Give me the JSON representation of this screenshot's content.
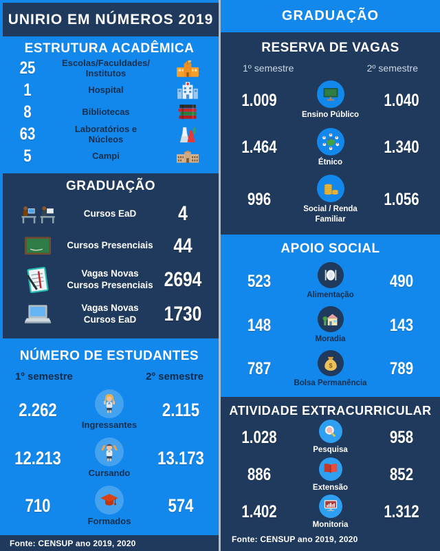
{
  "colors": {
    "navy": "#1f3a5c",
    "blue": "#1287ec",
    "circle_light_blue": "#44a2ee",
    "circle_bright_blue": "#2f9ff2",
    "divider": "#aebfcc",
    "label_dark": "#16304e",
    "semester_muted": "#ccd8e4"
  },
  "icons": {
    "school-icon": "🏫",
    "hospital-icon": "🏥",
    "books-icon": "📚",
    "lab-icon": "⚗",
    "campus-icon": "🏛",
    "ead-students-icon": "💻",
    "chalkboard-icon": "🖥",
    "notepad-icon": "📝",
    "laptop-icon": "💻",
    "girl-student-icon": "👧",
    "boy-student-icon": "🙌",
    "grad-cap-icon": "🎓",
    "public-school-icon": "🏫",
    "ethnic-icon": "🌐",
    "coins-icon": "🪙",
    "food-icon": "🍽",
    "housing-icon": "🏠",
    "money-bag-icon": "💰",
    "research-icon": "🔍",
    "extension-icon": "📖",
    "monitoring-icon": "📊"
  },
  "left": {
    "header": {
      "title": "UNIRIO EM NÚMEROS 2019"
    },
    "estrutura": {
      "title": "ESTRUTURA ACADÊMICA",
      "rows": [
        {
          "value": "25",
          "label": "Escolas/Faculdades/\nInstitutos",
          "icon": "school-icon"
        },
        {
          "value": "1",
          "label": "Hospital",
          "icon": "hospital-icon"
        },
        {
          "value": "8",
          "label": "Bibliotecas",
          "icon": "books-icon"
        },
        {
          "value": "63",
          "label": "Laboratórios e\nNúcleos",
          "icon": "lab-icon"
        },
        {
          "value": "5",
          "label": "Campi",
          "icon": "campus-icon"
        }
      ]
    },
    "graduacao": {
      "title": "GRADUAÇÃO",
      "rows": [
        {
          "icon": "ead-students-icon",
          "label": "Cursos EaD",
          "value": "4"
        },
        {
          "icon": "chalkboard-icon",
          "label": "Cursos Presenciais",
          "value": "44"
        },
        {
          "icon": "notepad-icon",
          "label": "Vagas Novas\nCursos Presenciais",
          "value": "2694"
        },
        {
          "icon": "laptop-icon",
          "label": "Vagas Novas\nCursos EaD",
          "value": "1730"
        }
      ]
    },
    "estudantes": {
      "title": "NÚMERO DE ESTUDANTES",
      "sem1": "1º semestre",
      "sem2": "2º semestre",
      "rows": [
        {
          "v1": "2.262",
          "icon": "girl-student-icon",
          "label": "Ingressantes",
          "v2": "2.115"
        },
        {
          "v1": "12.213",
          "icon": "boy-student-icon",
          "label": "Cursando",
          "v2": "13.173"
        },
        {
          "v1": "710",
          "icon": "grad-cap-icon",
          "label": "Formados",
          "v2": "574"
        }
      ]
    },
    "fonte": "Fonte: CENSUP ano 2019, 2020"
  },
  "right": {
    "header": {
      "title": "GRADUAÇÃO"
    },
    "reserva": {
      "title": "RESERVA DE VAGAS",
      "sem1": "1º semestre",
      "sem2": "2º semestre",
      "rows": [
        {
          "v1": "1.009",
          "icon": "public-school-icon",
          "label": "Ensino Público",
          "v2": "1.040"
        },
        {
          "v1": "1.464",
          "icon": "ethnic-icon",
          "label": "Étnico",
          "v2": "1.340"
        },
        {
          "v1": "996",
          "icon": "coins-icon",
          "label": "Social / Renda\nFamiliar",
          "v2": "1.056"
        }
      ]
    },
    "apoio": {
      "title": "APOIO SOCIAL",
      "rows": [
        {
          "v1": "523",
          "icon": "food-icon",
          "label": "Alimentação",
          "v2": "490"
        },
        {
          "v1": "148",
          "icon": "housing-icon",
          "label": "Moradia",
          "v2": "143"
        },
        {
          "v1": "787",
          "icon": "money-bag-icon",
          "label": "Bolsa Permanência",
          "v2": "789"
        }
      ]
    },
    "atividade": {
      "title": "ATIVIDADE EXTRACURRICULAR",
      "rows": [
        {
          "v1": "1.028",
          "icon": "research-icon",
          "label": "Pesquisa",
          "v2": "958"
        },
        {
          "v1": "886",
          "icon": "extension-icon",
          "label": "Extensão",
          "v2": "852"
        },
        {
          "v1": "1.402",
          "icon": "monitoring-icon",
          "label": "Monitoria",
          "v2": "1.312"
        }
      ]
    },
    "fonte": "Fonte: CENSUP ano 2019, 2020"
  },
  "chart_data": [
    {
      "type": "table",
      "title": "ESTRUTURA ACADÊMICA",
      "categories": [
        "Escolas/Faculdades/Institutos",
        "Hospital",
        "Bibliotecas",
        "Laboratórios e Núcleos",
        "Campi"
      ],
      "values": [
        25,
        1,
        8,
        63,
        5
      ]
    },
    {
      "type": "table",
      "title": "GRADUAÇÃO",
      "categories": [
        "Cursos EaD",
        "Cursos Presenciais",
        "Vagas Novas Cursos Presenciais",
        "Vagas Novas Cursos EaD"
      ],
      "values": [
        4,
        44,
        2694,
        1730
      ]
    },
    {
      "type": "table",
      "title": "NÚMERO DE ESTUDANTES",
      "categories": [
        "Ingressantes",
        "Cursando",
        "Formados"
      ],
      "series": [
        {
          "name": "1º semestre",
          "values": [
            2262,
            12213,
            710
          ]
        },
        {
          "name": "2º semestre",
          "values": [
            2115,
            13173,
            574
          ]
        }
      ]
    },
    {
      "type": "table",
      "title": "RESERVA DE VAGAS",
      "categories": [
        "Ensino Público",
        "Étnico",
        "Social / Renda Familiar"
      ],
      "series": [
        {
          "name": "1º semestre",
          "values": [
            1009,
            1464,
            996
          ]
        },
        {
          "name": "2º semestre",
          "values": [
            1040,
            1340,
            1056
          ]
        }
      ]
    },
    {
      "type": "table",
      "title": "APOIO SOCIAL",
      "categories": [
        "Alimentação",
        "Moradia",
        "Bolsa Permanência"
      ],
      "series": [
        {
          "name": "1º semestre",
          "values": [
            523,
            148,
            787
          ]
        },
        {
          "name": "2º semestre",
          "values": [
            490,
            143,
            789
          ]
        }
      ]
    },
    {
      "type": "table",
      "title": "ATIVIDADE EXTRACURRICULAR",
      "categories": [
        "Pesquisa",
        "Extensão",
        "Monitoria"
      ],
      "series": [
        {
          "name": "1º semestre",
          "values": [
            1028,
            886,
            1402
          ]
        },
        {
          "name": "2º semestre",
          "values": [
            958,
            852,
            1312
          ]
        }
      ]
    }
  ]
}
